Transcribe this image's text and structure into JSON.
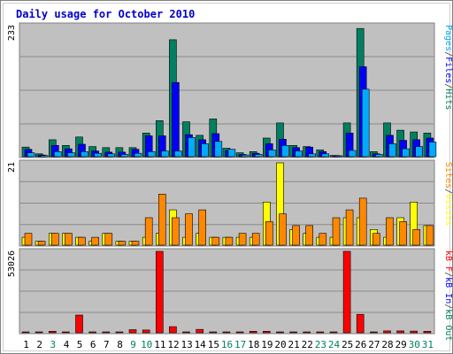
{
  "chart_data": [
    {
      "type": "bar",
      "title": "Daily usage for October 2010",
      "ymax_label": "233",
      "ylim": [
        0,
        233
      ],
      "categories": [
        "1",
        "2",
        "3",
        "4",
        "5",
        "6",
        "7",
        "8",
        "9",
        "10",
        "11",
        "12",
        "13",
        "14",
        "15",
        "16",
        "17",
        "18",
        "19",
        "20",
        "21",
        "22",
        "23",
        "24",
        "25",
        "26",
        "27",
        "28",
        "29",
        "30",
        "31"
      ],
      "weekend_days": [
        "3",
        "9",
        "10",
        "16",
        "17",
        "23",
        "24",
        "30",
        "31"
      ],
      "axis_title": [
        {
          "text": "Pages",
          "color": "#00aaff"
        },
        {
          "text": "/",
          "color": "#444444"
        },
        {
          "text": "Files",
          "color": "#0000ff"
        },
        {
          "text": "/",
          "color": "#444444"
        },
        {
          "text": "Hits",
          "color": "#008060"
        }
      ],
      "series": [
        {
          "name": "Hits",
          "color": "#008060",
          "values": [
            17,
            5,
            30,
            20,
            35,
            18,
            16,
            16,
            16,
            42,
            64,
            208,
            62,
            38,
            67,
            15,
            7,
            9,
            33,
            60,
            20,
            18,
            12,
            2,
            60,
            228,
            9,
            60,
            47,
            44,
            42
          ]
        },
        {
          "name": "Files",
          "color": "#0000ff",
          "values": [
            13,
            3,
            20,
            14,
            22,
            10,
            8,
            8,
            13,
            37,
            37,
            132,
            39,
            30,
            41,
            11,
            4,
            6,
            23,
            31,
            16,
            17,
            9,
            2,
            42,
            160,
            5,
            38,
            29,
            30,
            33
          ]
        },
        {
          "name": "Pages",
          "color": "#00aaff",
          "values": [
            7,
            2,
            9,
            7,
            9,
            6,
            5,
            4,
            6,
            9,
            10,
            10,
            34,
            23,
            27,
            13,
            3,
            4,
            12,
            20,
            10,
            5,
            5,
            1,
            11,
            120,
            4,
            23,
            14,
            18,
            26
          ]
        }
      ]
    },
    {
      "type": "bar",
      "ymax_label": "21",
      "ylim": [
        0,
        21
      ],
      "axis_title": [
        {
          "text": "Sites",
          "color": "#ff8800"
        },
        {
          "text": "/",
          "color": "#444444"
        },
        {
          "text": "Visits",
          "color": "#ffff00"
        }
      ],
      "series": [
        {
          "name": "Visits",
          "color": "#ffff00",
          "values": [
            2,
            1,
            3,
            3,
            2,
            1,
            3,
            1,
            1,
            2,
            3,
            9,
            2,
            3,
            2,
            2,
            2,
            2,
            11,
            21,
            4,
            3,
            2,
            2,
            7,
            7,
            4,
            2,
            7,
            11,
            5
          ]
        },
        {
          "name": "Sites",
          "color": "#ff8800",
          "values": [
            3,
            1,
            3,
            3,
            2,
            2,
            3,
            1,
            1,
            7,
            13,
            7,
            8,
            9,
            2,
            2,
            3,
            3,
            6,
            8,
            5,
            5,
            3,
            7,
            9,
            12,
            3,
            7,
            6,
            4,
            5
          ]
        }
      ]
    },
    {
      "type": "bar",
      "ymax_label": "53026",
      "ylim": [
        0,
        53026
      ],
      "axis_title": [
        {
          "text": "kB F",
          "color": "#ff0000"
        },
        {
          "text": "/",
          "color": "#444444"
        },
        {
          "text": "kB In",
          "color": "#0000ff"
        },
        {
          "text": "/",
          "color": "#444444"
        },
        {
          "text": "kB Out",
          "color": "#008060"
        }
      ],
      "series": [
        {
          "name": "kB F",
          "color": "#ff0000",
          "values": [
            400,
            400,
            1000,
            500,
            11500,
            400,
            400,
            400,
            2000,
            1800,
            53026,
            4000,
            400,
            2200,
            500,
            400,
            400,
            1000,
            1000,
            400,
            400,
            400,
            400,
            400,
            53026,
            12000,
            400,
            1200,
            1200,
            1100,
            1000
          ]
        }
      ]
    }
  ]
}
